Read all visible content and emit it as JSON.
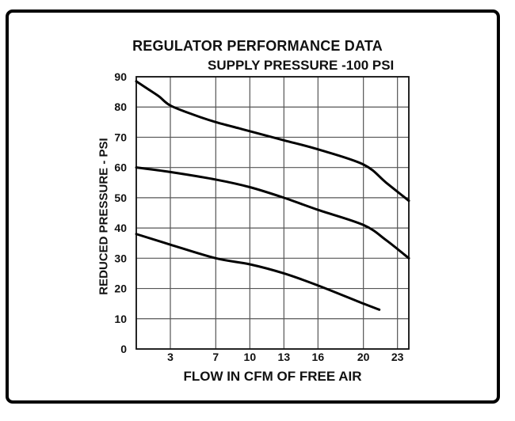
{
  "chart_data": {
    "type": "line",
    "title": "REGULATOR PERFORMANCE DATA",
    "subtitle": "SUPPLY PRESSURE -100 PSI",
    "xlabel": "FLOW IN CFM OF FREE AIR",
    "ylabel": "REDUCED PRESSURE - PSI",
    "x_ticks": [
      3,
      7,
      10,
      13,
      16,
      20,
      23
    ],
    "y_ticks": [
      0,
      10,
      20,
      30,
      40,
      50,
      60,
      70,
      80,
      90
    ],
    "grid_x": [
      0,
      3,
      7,
      10,
      13,
      16,
      20,
      23,
      24,
      28
    ],
    "xlim": [
      0,
      24
    ],
    "ylim": [
      0,
      90
    ],
    "grid": true,
    "series": [
      {
        "x": [
          0,
          1,
          2,
          3,
          5,
          7,
          9,
          10,
          13,
          16,
          20,
          22,
          24
        ],
        "y": [
          88.5,
          86,
          83.5,
          80.5,
          77.5,
          75,
          73,
          72,
          69,
          66,
          61,
          55,
          49
        ]
      },
      {
        "x": [
          0,
          3,
          7,
          10,
          13,
          16,
          20,
          22,
          24
        ],
        "y": [
          60,
          58.5,
          56,
          53.5,
          50,
          46,
          41,
          36,
          30
        ]
      },
      {
        "x": [
          0,
          3,
          7,
          10,
          13,
          16,
          20,
          21.4
        ],
        "y": [
          38,
          34.5,
          30,
          28,
          25,
          21,
          15,
          13
        ]
      }
    ]
  }
}
